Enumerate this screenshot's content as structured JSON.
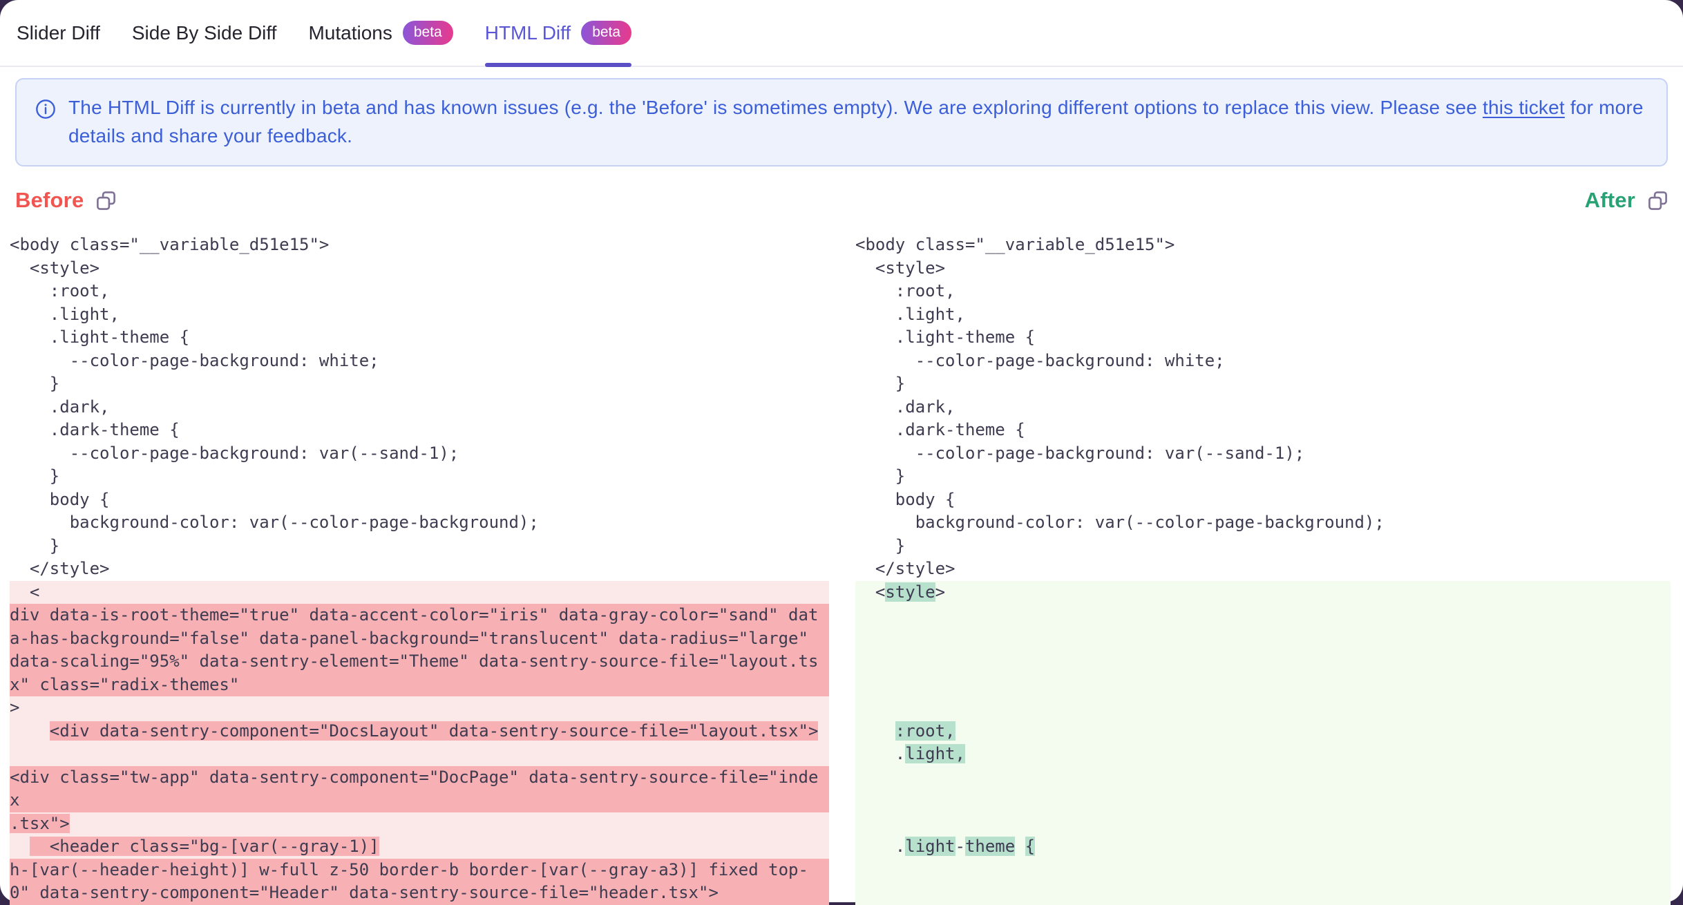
{
  "tabs": [
    {
      "label": "Slider Diff",
      "active": false,
      "beta": false
    },
    {
      "label": "Side By Side Diff",
      "active": false,
      "beta": false
    },
    {
      "label": "Mutations",
      "active": false,
      "beta": true
    },
    {
      "label": "HTML Diff",
      "active": true,
      "beta": true
    }
  ],
  "beta_label": "beta",
  "banner": {
    "text_before_link": "The HTML Diff is currently in beta and has known issues (e.g. the 'Before' is sometimes empty). We are exploring different options to replace this view. Please see ",
    "link_text": "this ticket",
    "text_after_link": " for more details and share your feedback."
  },
  "headings": {
    "before_label": "Before",
    "after_label": "After"
  },
  "colors": {
    "tab_active": "#5a56d6",
    "tab_underline": "#5b4fc8",
    "beta_from": "#8a56d9",
    "beta_to": "#e93a8c",
    "banner_bg": "#edf2fd",
    "banner_border": "#c5d2f6",
    "banner_text": "#3c5fd7",
    "before_red": "#f15550",
    "after_green": "#27a274",
    "icon_purple": "#7e7194",
    "pink_light": "#fbe9e9",
    "pink_strong": "#f7b1b5",
    "green_light": "#f4fbef",
    "green_strong": "#b7e0cd"
  },
  "code": {
    "before_rows": [
      {
        "bg": "plain",
        "segs": [
          [
            "<body class=\"__variable_d51e15\">",
            0
          ]
        ]
      },
      {
        "bg": "plain",
        "segs": [
          [
            "  <style>",
            0
          ]
        ]
      },
      {
        "bg": "plain",
        "segs": [
          [
            "    :root,",
            0
          ]
        ]
      },
      {
        "bg": "plain",
        "segs": [
          [
            "    .light,",
            0
          ]
        ]
      },
      {
        "bg": "plain",
        "segs": [
          [
            "    .light-theme {",
            0
          ]
        ]
      },
      {
        "bg": "plain",
        "segs": [
          [
            "      --color-page-background: white;",
            0
          ]
        ]
      },
      {
        "bg": "plain",
        "segs": [
          [
            "    }",
            0
          ]
        ]
      },
      {
        "bg": "plain",
        "segs": [
          [
            "    .dark,",
            0
          ]
        ]
      },
      {
        "bg": "plain",
        "segs": [
          [
            "    .dark-theme {",
            0
          ]
        ]
      },
      {
        "bg": "plain",
        "segs": [
          [
            "      --color-page-background: var(--sand-1);",
            0
          ]
        ]
      },
      {
        "bg": "plain",
        "segs": [
          [
            "    }",
            0
          ]
        ]
      },
      {
        "bg": "plain",
        "segs": [
          [
            "    body {",
            0
          ]
        ]
      },
      {
        "bg": "plain",
        "segs": [
          [
            "      background-color: var(--color-page-background);",
            0
          ]
        ]
      },
      {
        "bg": "plain",
        "segs": [
          [
            "    }",
            0
          ]
        ]
      },
      {
        "bg": "plain",
        "segs": [
          [
            "  </style>",
            0
          ]
        ]
      },
      {
        "bg": "light",
        "segs": [
          [
            "  <",
            0
          ]
        ]
      },
      {
        "bg": "full",
        "segs": [
          [
            "div data-is-root-theme=\"true\" data-accent-color=\"iris\" data-gray-color=\"sand\" dat",
            0
          ]
        ]
      },
      {
        "bg": "full",
        "segs": [
          [
            "a-has-background=\"false\" data-panel-background=\"translucent\" data-radius=\"large\"",
            0
          ]
        ]
      },
      {
        "bg": "full",
        "segs": [
          [
            "data-scaling=\"95%\" data-sentry-element=\"Theme\" data-sentry-source-file=\"layout.ts",
            0
          ]
        ]
      },
      {
        "bg": "full",
        "segs": [
          [
            "x\" class=\"radix-themes\"",
            0
          ]
        ]
      },
      {
        "bg": "light",
        "segs": [
          [
            ">",
            0
          ]
        ]
      },
      {
        "bg": "light",
        "segs": [
          [
            "    ",
            0
          ],
          [
            "<div data-sentry-component=\"DocsLayout\" data-sentry-source-file=\"layout.tsx\">",
            1
          ]
        ]
      },
      {
        "bg": "light",
        "segs": []
      },
      {
        "bg": "full",
        "segs": [
          [
            "<div class=\"tw-app\" data-sentry-component=\"DocPage\" data-sentry-source-file=\"inde",
            0
          ]
        ]
      },
      {
        "bg": "full",
        "segs": [
          [
            "x",
            0
          ]
        ]
      },
      {
        "bg": "light",
        "segs": [
          [
            ".tsx\">",
            1
          ]
        ]
      },
      {
        "bg": "light",
        "segs": [
          [
            "  ",
            0
          ],
          [
            "  <header class=\"bg-[var(--gray-1)]",
            1
          ]
        ]
      },
      {
        "bg": "full",
        "segs": [
          [
            "h-[var(--header-height)] w-full z-50 border-b border-[var(--gray-a3)] fixed top-",
            0
          ]
        ]
      },
      {
        "bg": "full",
        "segs": [
          [
            "0\" data-sentry-component=\"Header\" data-sentry-source-file=\"header.tsx\">",
            0
          ]
        ]
      }
    ],
    "after_rows": [
      {
        "bg": "plain",
        "segs": [
          [
            "<body class=\"__variable_d51e15\">",
            0
          ]
        ]
      },
      {
        "bg": "plain",
        "segs": [
          [
            "  <style>",
            0
          ]
        ]
      },
      {
        "bg": "plain",
        "segs": [
          [
            "    :root,",
            0
          ]
        ]
      },
      {
        "bg": "plain",
        "segs": [
          [
            "    .light,",
            0
          ]
        ]
      },
      {
        "bg": "plain",
        "segs": [
          [
            "    .light-theme {",
            0
          ]
        ]
      },
      {
        "bg": "plain",
        "segs": [
          [
            "      --color-page-background: white;",
            0
          ]
        ]
      },
      {
        "bg": "plain",
        "segs": [
          [
            "    }",
            0
          ]
        ]
      },
      {
        "bg": "plain",
        "segs": [
          [
            "    .dark,",
            0
          ]
        ]
      },
      {
        "bg": "plain",
        "segs": [
          [
            "    .dark-theme {",
            0
          ]
        ]
      },
      {
        "bg": "plain",
        "segs": [
          [
            "      --color-page-background: var(--sand-1);",
            0
          ]
        ]
      },
      {
        "bg": "plain",
        "segs": [
          [
            "    }",
            0
          ]
        ]
      },
      {
        "bg": "plain",
        "segs": [
          [
            "    body {",
            0
          ]
        ]
      },
      {
        "bg": "plain",
        "segs": [
          [
            "      background-color: var(--color-page-background);",
            0
          ]
        ]
      },
      {
        "bg": "plain",
        "segs": [
          [
            "    }",
            0
          ]
        ]
      },
      {
        "bg": "plain",
        "segs": [
          [
            "  </style>",
            0
          ]
        ]
      },
      {
        "bg": "light",
        "segs": [
          [
            "  <",
            0
          ],
          [
            "style",
            1
          ],
          [
            ">",
            0
          ]
        ]
      },
      {
        "bg": "light",
        "segs": []
      },
      {
        "bg": "light",
        "segs": []
      },
      {
        "bg": "light",
        "segs": []
      },
      {
        "bg": "light",
        "segs": []
      },
      {
        "bg": "light",
        "segs": []
      },
      {
        "bg": "light",
        "segs": [
          [
            "    ",
            0
          ],
          [
            ":root,",
            1
          ]
        ]
      },
      {
        "bg": "light",
        "segs": [
          [
            "    .",
            0
          ],
          [
            "light,",
            1
          ]
        ]
      },
      {
        "bg": "light",
        "segs": []
      },
      {
        "bg": "light",
        "segs": []
      },
      {
        "bg": "light",
        "segs": []
      },
      {
        "bg": "light",
        "segs": [
          [
            "    .",
            0
          ],
          [
            "light",
            1
          ],
          [
            "-",
            0
          ],
          [
            "theme",
            1
          ],
          [
            " ",
            0
          ],
          [
            "{",
            1
          ]
        ]
      },
      {
        "bg": "light",
        "segs": []
      },
      {
        "bg": "light",
        "segs": []
      }
    ]
  }
}
